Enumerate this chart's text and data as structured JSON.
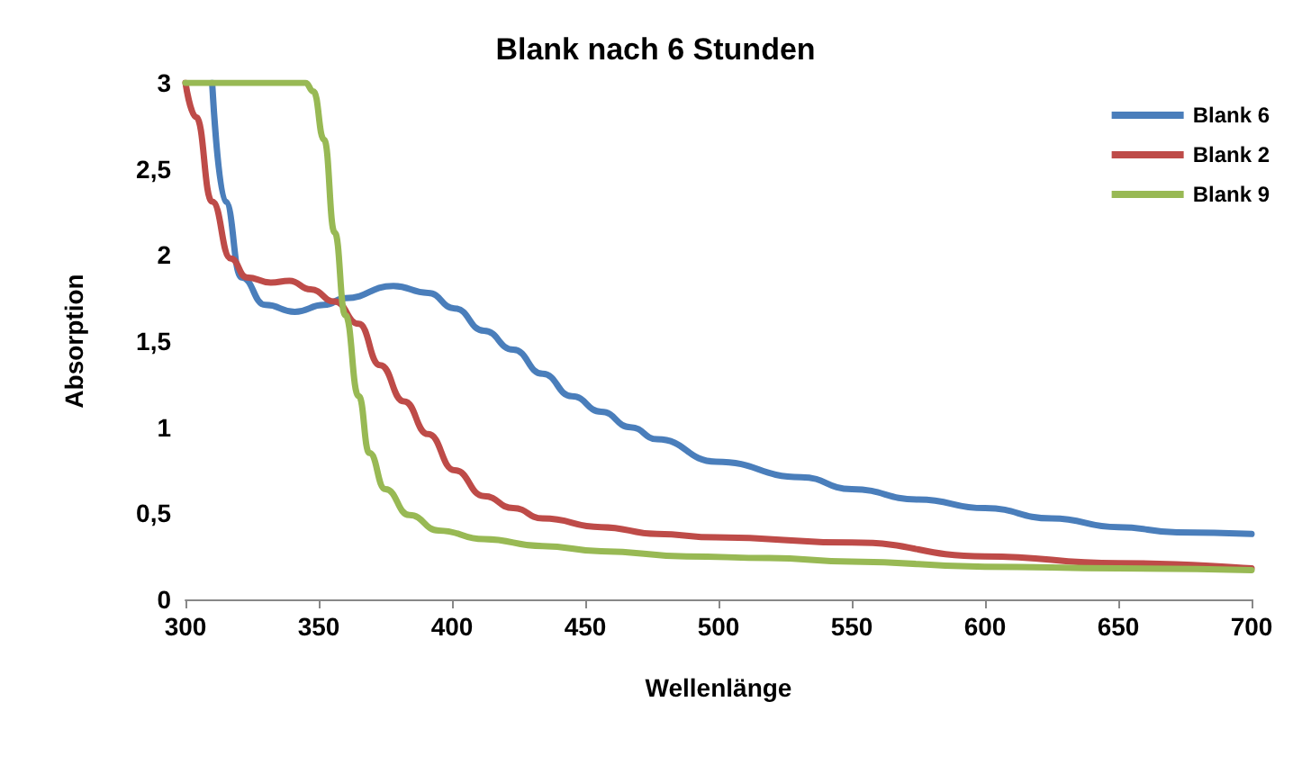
{
  "chart_data": {
    "type": "line",
    "title": "Blank nach 6 Stunden",
    "xlabel": "Wellenlänge",
    "ylabel": "Absorption",
    "xlim": [
      300,
      700
    ],
    "xticks": [
      300,
      350,
      400,
      450,
      500,
      550,
      600,
      650,
      700
    ],
    "ylim": [
      0,
      3
    ],
    "yticks": [
      0,
      {
        "value": 0.5,
        "label": "0,5"
      },
      1,
      {
        "value": 1.5,
        "label": "1,5"
      },
      2,
      {
        "value": 2.5,
        "label": "2,5"
      },
      3
    ],
    "grid": false,
    "legend": "top right",
    "marker": "none",
    "line_style": "solid",
    "series": [
      {
        "name": "Blank 6",
        "color": "#4a7ebb",
        "x": [
          310,
          315,
          321,
          330,
          341,
          352,
          360,
          378,
          391,
          401,
          412,
          423,
          434,
          445,
          456,
          467,
          477,
          499,
          531,
          550,
          575,
          600,
          625,
          650,
          672,
          700
        ],
        "values": [
          3,
          2.31,
          1.87,
          1.71,
          1.67,
          1.71,
          1.75,
          1.82,
          1.78,
          1.69,
          1.56,
          1.45,
          1.31,
          1.18,
          1.09,
          1,
          0.93,
          0.8,
          0.71,
          0.64,
          0.58,
          0.53,
          0.47,
          0.42,
          0.39,
          0.38
        ]
      },
      {
        "name": "Blank 2",
        "color": "#be4b48",
        "x": [
          300,
          304,
          310,
          317,
          323,
          332,
          339,
          347,
          356,
          365,
          373,
          382,
          391,
          401,
          412,
          423,
          434,
          456,
          477,
          499,
          550,
          600,
          650,
          700
        ],
        "values": [
          3,
          2.8,
          2.31,
          1.98,
          1.87,
          1.84,
          1.85,
          1.8,
          1.73,
          1.6,
          1.36,
          1.15,
          0.96,
          0.75,
          0.6,
          0.53,
          0.47,
          0.42,
          0.38,
          0.36,
          0.33,
          0.25,
          0.21,
          0.18
        ]
      },
      {
        "name": "Blank 9",
        "color": "#98b954",
        "x": [
          300,
          345,
          348,
          352,
          356,
          360,
          365,
          369,
          375,
          384,
          395,
          412,
          434,
          456,
          488,
          519,
          550,
          600,
          650,
          700
        ],
        "values": [
          3,
          3,
          2.95,
          2.67,
          2.13,
          1.65,
          1.18,
          0.85,
          0.64,
          0.49,
          0.4,
          0.35,
          0.31,
          0.28,
          0.25,
          0.24,
          0.22,
          0.19,
          0.18,
          0.17
        ]
      }
    ]
  }
}
